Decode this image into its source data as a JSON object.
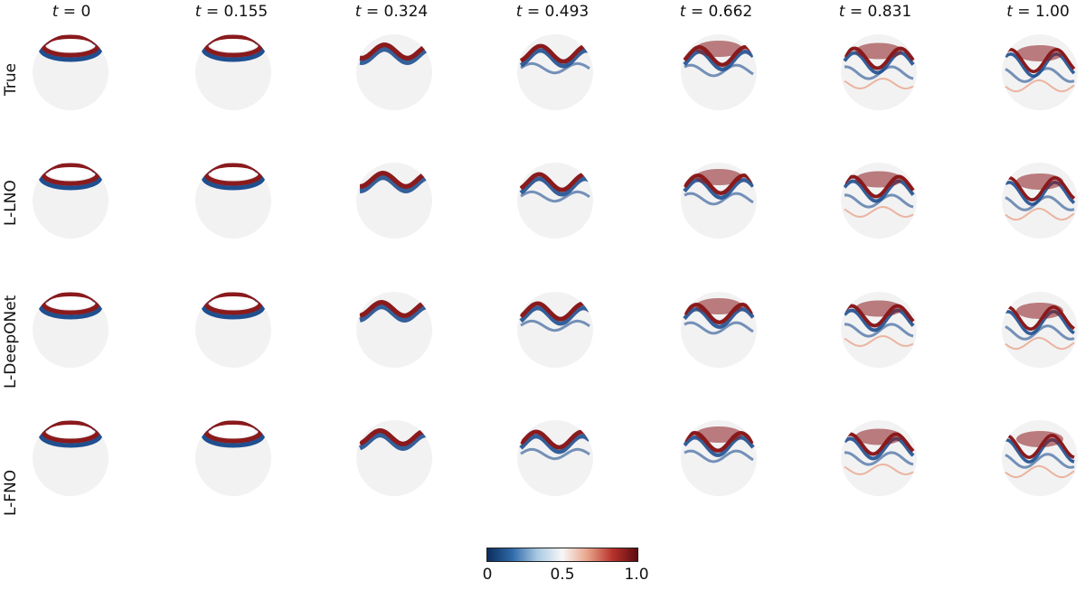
{
  "time_prefix": "t",
  "columns": [
    {
      "value": "0"
    },
    {
      "value": "0.155"
    },
    {
      "value": "0.324"
    },
    {
      "value": "0.493"
    },
    {
      "value": "0.662"
    },
    {
      "value": "0.831"
    },
    {
      "value": "1.00"
    }
  ],
  "rows": [
    {
      "label": "True"
    },
    {
      "label": "L-LNO"
    },
    {
      "label": "L-DeepONet"
    },
    {
      "label": "L-FNO"
    }
  ],
  "colorbar": {
    "ticks": [
      "0",
      "0.5",
      "1.0"
    ],
    "colors": [
      "#0c2d5c",
      "#2f6aa8",
      "#a9c9e3",
      "#f7f7f7",
      "#e8a48a",
      "#b8322c",
      "#5e0b10"
    ]
  },
  "colors": {
    "sphere": "#f2f2f3",
    "red": "#8a1a1c",
    "blue": "#1f4f8f"
  }
}
